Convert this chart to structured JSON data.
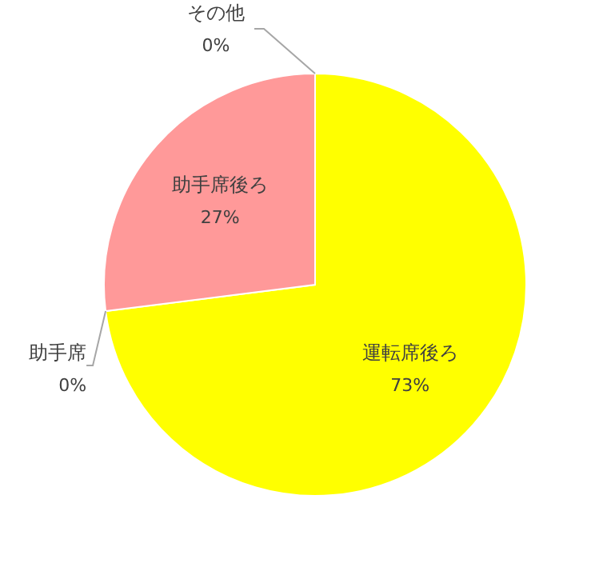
{
  "chart_data": {
    "type": "pie",
    "categories": [
      "運転席後ろ",
      "助手席",
      "助手席後ろ",
      "その他"
    ],
    "values": [
      73,
      0,
      27,
      0
    ],
    "colors": [
      "#ffff00",
      null,
      "#ff9999",
      null
    ],
    "value_labels": [
      "73%",
      "0%",
      "27%",
      "0%"
    ]
  }
}
